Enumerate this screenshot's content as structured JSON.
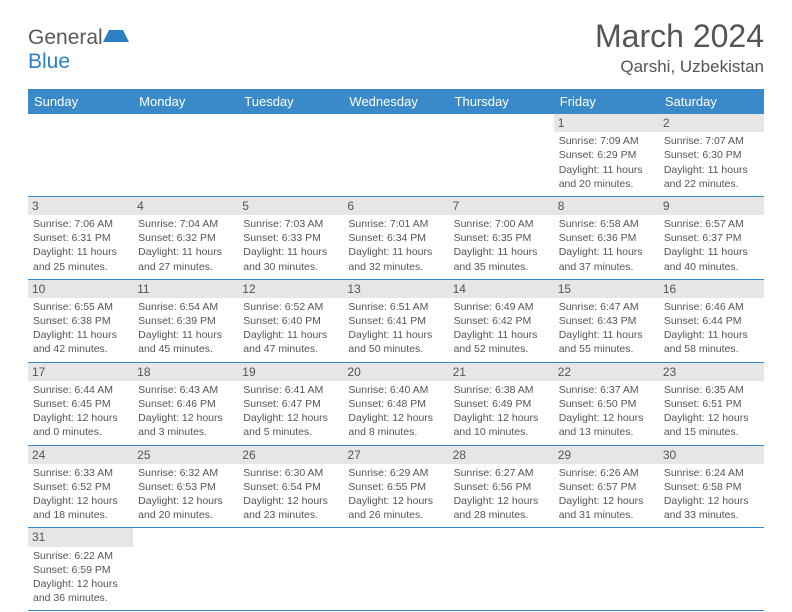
{
  "logo": {
    "part1": "General",
    "part2": "Blue"
  },
  "title": "March 2024",
  "location": "Qarshi, Uzbekistan",
  "colors": {
    "header_bg": "#3a8ac9",
    "header_text": "#ffffff",
    "grid_line": "#3a8ac9",
    "daynum_bg": "#e6e6e6",
    "text": "#555555",
    "logo_gray": "#5a5a5a",
    "logo_blue": "#2b7fc4"
  },
  "weekdays": [
    "Sunday",
    "Monday",
    "Tuesday",
    "Wednesday",
    "Thursday",
    "Friday",
    "Saturday"
  ],
  "weeks": [
    [
      null,
      null,
      null,
      null,
      null,
      {
        "d": "1",
        "sr": "7:09 AM",
        "ss": "6:29 PM",
        "dl": "11 hours and 20 minutes."
      },
      {
        "d": "2",
        "sr": "7:07 AM",
        "ss": "6:30 PM",
        "dl": "11 hours and 22 minutes."
      }
    ],
    [
      {
        "d": "3",
        "sr": "7:06 AM",
        "ss": "6:31 PM",
        "dl": "11 hours and 25 minutes."
      },
      {
        "d": "4",
        "sr": "7:04 AM",
        "ss": "6:32 PM",
        "dl": "11 hours and 27 minutes."
      },
      {
        "d": "5",
        "sr": "7:03 AM",
        "ss": "6:33 PM",
        "dl": "11 hours and 30 minutes."
      },
      {
        "d": "6",
        "sr": "7:01 AM",
        "ss": "6:34 PM",
        "dl": "11 hours and 32 minutes."
      },
      {
        "d": "7",
        "sr": "7:00 AM",
        "ss": "6:35 PM",
        "dl": "11 hours and 35 minutes."
      },
      {
        "d": "8",
        "sr": "6:58 AM",
        "ss": "6:36 PM",
        "dl": "11 hours and 37 minutes."
      },
      {
        "d": "9",
        "sr": "6:57 AM",
        "ss": "6:37 PM",
        "dl": "11 hours and 40 minutes."
      }
    ],
    [
      {
        "d": "10",
        "sr": "6:55 AM",
        "ss": "6:38 PM",
        "dl": "11 hours and 42 minutes."
      },
      {
        "d": "11",
        "sr": "6:54 AM",
        "ss": "6:39 PM",
        "dl": "11 hours and 45 minutes."
      },
      {
        "d": "12",
        "sr": "6:52 AM",
        "ss": "6:40 PM",
        "dl": "11 hours and 47 minutes."
      },
      {
        "d": "13",
        "sr": "6:51 AM",
        "ss": "6:41 PM",
        "dl": "11 hours and 50 minutes."
      },
      {
        "d": "14",
        "sr": "6:49 AM",
        "ss": "6:42 PM",
        "dl": "11 hours and 52 minutes."
      },
      {
        "d": "15",
        "sr": "6:47 AM",
        "ss": "6:43 PM",
        "dl": "11 hours and 55 minutes."
      },
      {
        "d": "16",
        "sr": "6:46 AM",
        "ss": "6:44 PM",
        "dl": "11 hours and 58 minutes."
      }
    ],
    [
      {
        "d": "17",
        "sr": "6:44 AM",
        "ss": "6:45 PM",
        "dl": "12 hours and 0 minutes."
      },
      {
        "d": "18",
        "sr": "6:43 AM",
        "ss": "6:46 PM",
        "dl": "12 hours and 3 minutes."
      },
      {
        "d": "19",
        "sr": "6:41 AM",
        "ss": "6:47 PM",
        "dl": "12 hours and 5 minutes."
      },
      {
        "d": "20",
        "sr": "6:40 AM",
        "ss": "6:48 PM",
        "dl": "12 hours and 8 minutes."
      },
      {
        "d": "21",
        "sr": "6:38 AM",
        "ss": "6:49 PM",
        "dl": "12 hours and 10 minutes."
      },
      {
        "d": "22",
        "sr": "6:37 AM",
        "ss": "6:50 PM",
        "dl": "12 hours and 13 minutes."
      },
      {
        "d": "23",
        "sr": "6:35 AM",
        "ss": "6:51 PM",
        "dl": "12 hours and 15 minutes."
      }
    ],
    [
      {
        "d": "24",
        "sr": "6:33 AM",
        "ss": "6:52 PM",
        "dl": "12 hours and 18 minutes."
      },
      {
        "d": "25",
        "sr": "6:32 AM",
        "ss": "6:53 PM",
        "dl": "12 hours and 20 minutes."
      },
      {
        "d": "26",
        "sr": "6:30 AM",
        "ss": "6:54 PM",
        "dl": "12 hours and 23 minutes."
      },
      {
        "d": "27",
        "sr": "6:29 AM",
        "ss": "6:55 PM",
        "dl": "12 hours and 26 minutes."
      },
      {
        "d": "28",
        "sr": "6:27 AM",
        "ss": "6:56 PM",
        "dl": "12 hours and 28 minutes."
      },
      {
        "d": "29",
        "sr": "6:26 AM",
        "ss": "6:57 PM",
        "dl": "12 hours and 31 minutes."
      },
      {
        "d": "30",
        "sr": "6:24 AM",
        "ss": "6:58 PM",
        "dl": "12 hours and 33 minutes."
      }
    ],
    [
      {
        "d": "31",
        "sr": "6:22 AM",
        "ss": "6:59 PM",
        "dl": "12 hours and 36 minutes."
      },
      null,
      null,
      null,
      null,
      null,
      null
    ]
  ],
  "labels": {
    "sunrise": "Sunrise:",
    "sunset": "Sunset:",
    "daylight": "Daylight:"
  }
}
